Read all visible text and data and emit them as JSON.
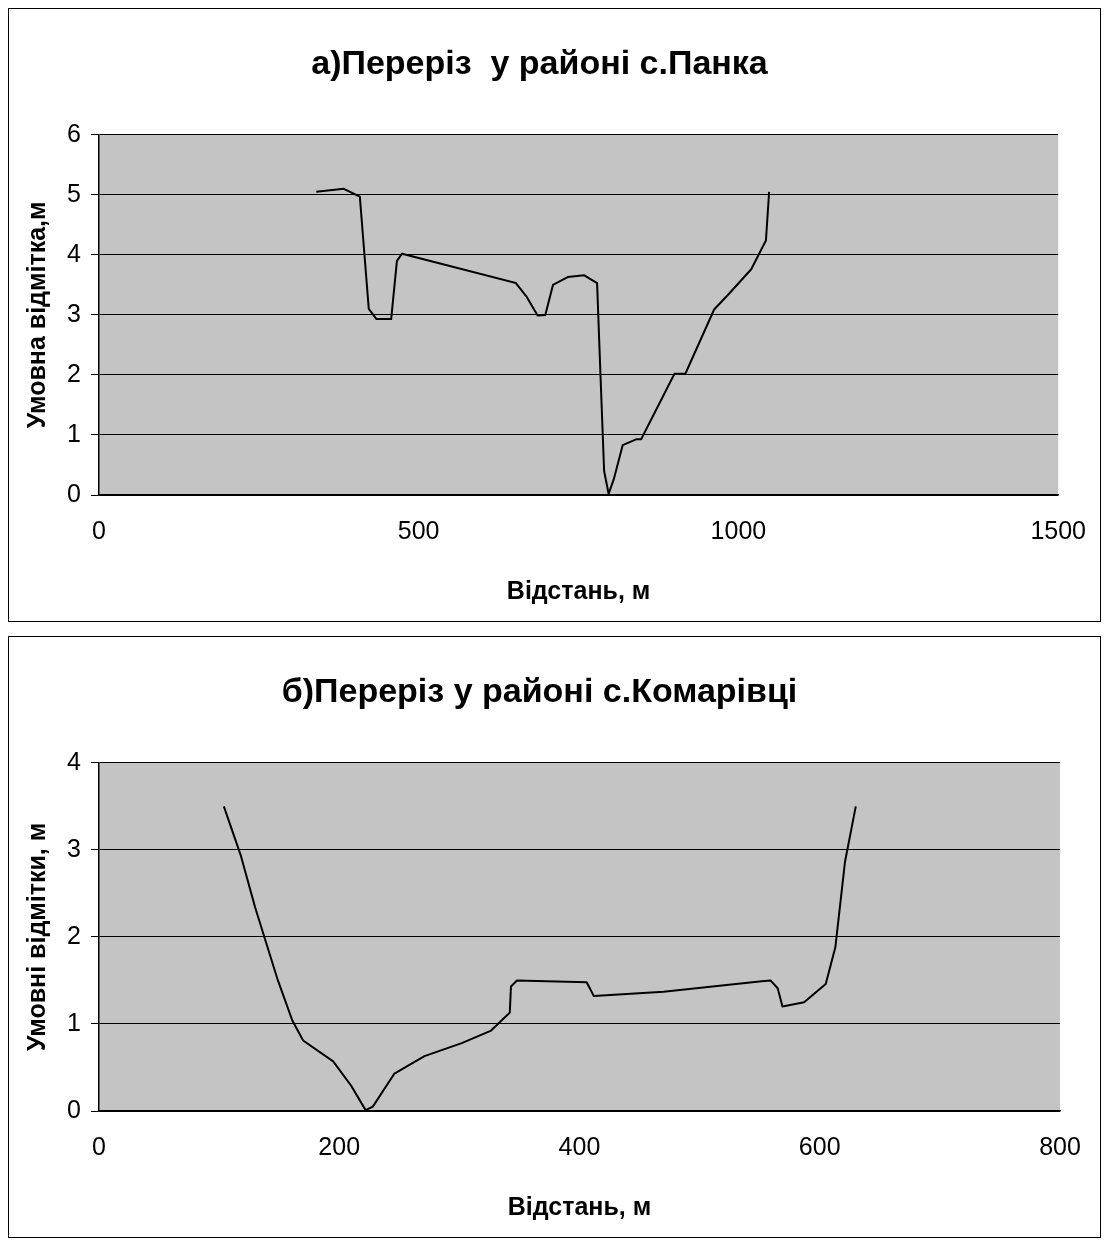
{
  "chart_data": [
    {
      "type": "line",
      "title": "а)Переріз  у районі с.Панка",
      "xlabel": "Відстань, м",
      "ylabel": "Умовна відмітка,м",
      "series": [
        {
          "color": "#000000",
          "x": [
            340,
            383,
            408,
            422,
            434,
            457,
            466,
            474,
            652,
            669,
            686,
            698,
            710,
            733,
            759,
            779,
            784,
            790,
            797,
            805,
            819,
            841,
            848,
            900,
            917,
            962,
            986,
            1020,
            1043,
            1048
          ],
          "values": [
            5.05,
            5.1,
            4.97,
            3.1,
            2.93,
            2.93,
            3.9,
            4.02,
            3.53,
            3.3,
            2.99,
            3.0,
            3.5,
            3.63,
            3.66,
            3.53,
            2.08,
            0.4,
            0.02,
            0.26,
            0.83,
            0.93,
            0.93,
            2.02,
            2.02,
            3.09,
            3.36,
            3.76,
            4.24,
            5.05
          ]
        }
      ],
      "xlim": [
        0,
        1500
      ],
      "xticks": [
        0,
        500,
        1000,
        1500
      ],
      "ylim": [
        0,
        6
      ],
      "yticks": [
        0,
        1,
        2,
        3,
        4,
        5,
        6
      ],
      "grid": "y",
      "legend": false,
      "marker": "none",
      "line_style": "solid"
    },
    {
      "type": "line",
      "title": "б)Переріз у районі с.Комарівці",
      "xlabel": "Відстань, м",
      "ylabel": "Умовні відмітки, м",
      "series": [
        {
          "color": "#000000",
          "x": [
            104,
            118,
            130,
            149,
            161,
            170,
            195,
            210,
            222,
            228,
            246,
            271,
            302,
            326,
            342,
            343,
            348,
            406,
            412,
            470,
            559,
            565,
            569,
            587,
            605,
            613,
            621,
            630
          ],
          "values": [
            3.5,
            2.94,
            2.34,
            1.5,
            1.04,
            0.81,
            0.57,
            0.29,
            0.01,
            0.05,
            0.43,
            0.63,
            0.78,
            0.92,
            1.13,
            1.43,
            1.5,
            1.48,
            1.32,
            1.37,
            1.5,
            1.41,
            1.2,
            1.25,
            1.46,
            1.88,
            2.86,
            3.5
          ]
        }
      ],
      "xlim": [
        0,
        800
      ],
      "xticks": [
        0,
        200,
        400,
        600,
        800
      ],
      "ylim": [
        0,
        4
      ],
      "yticks": [
        0,
        1,
        2,
        3,
        4
      ],
      "grid": "y",
      "legend": false,
      "marker": "none",
      "line_style": "solid"
    }
  ]
}
